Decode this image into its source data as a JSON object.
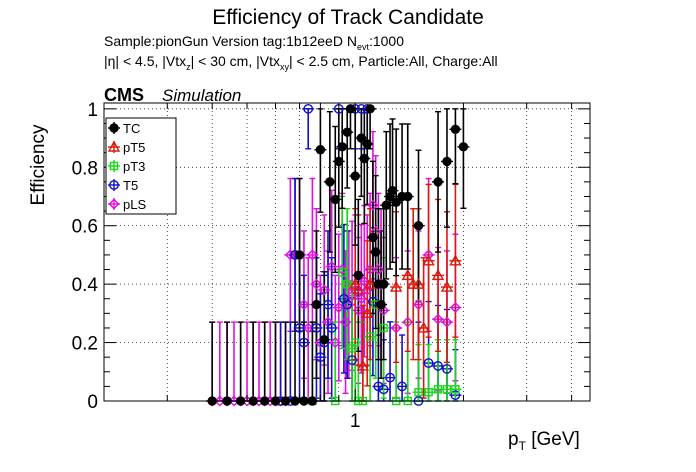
{
  "header": {
    "title": "Efficiency of Track Candidate",
    "sample_line": {
      "prefix": "Sample:pionGun   Version tag:1b12eeD  N",
      "sub": "evt",
      "suffix": ":1000"
    },
    "cuts_line": {
      "eta": "|η| < 4.5, |Vtx",
      "z_sub": "z",
      "mid": "| < 30 cm, |Vtx",
      "xy_sub": "xy",
      "end": "| < 2.5 cm, Particle:All, Charge:All"
    },
    "cms": "CMS",
    "simulation": "Simulation"
  },
  "axes": {
    "ylabel": "Efficiency",
    "xlabel_main": "p",
    "xlabel_sub": "T",
    "xlabel_unit": " [GeV]"
  },
  "colors": {
    "TC": "#000000",
    "pT5": "#d91a0a",
    "pT3": "#16d916",
    "T5": "#1010c8",
    "pLS": "#e010e0"
  },
  "chart_data": {
    "type": "scatter",
    "x_scale": "log",
    "xlim": [
      0.2,
      4.5
    ],
    "ylim": [
      0,
      1.02
    ],
    "y_ticks": [
      "0",
      "0.2",
      "0.4",
      "0.6",
      "0.8",
      "1"
    ],
    "x_ticks": [
      "1"
    ],
    "grid": true,
    "legend_position": "top-left",
    "x": [
      0.4,
      0.42,
      0.44,
      0.46,
      0.48,
      0.5,
      0.52,
      0.54,
      0.56,
      0.58,
      0.6,
      0.62,
      0.64,
      0.66,
      0.68,
      0.7,
      0.72,
      0.74,
      0.76,
      0.78,
      0.8,
      0.82,
      0.84,
      0.86,
      0.88,
      0.9,
      0.92,
      0.94,
      0.96,
      0.98,
      1.0,
      1.02,
      1.04,
      1.06,
      1.08,
      1.1,
      1.12,
      1.14,
      1.16,
      1.18,
      1.2,
      1.25,
      1.3,
      1.4,
      1.5,
      1.6,
      1.7,
      1.8,
      1.9,
      2.0
    ],
    "series": [
      {
        "name": "TC",
        "points": [
          [
            0.4,
            0
          ],
          [
            0.44,
            0
          ],
          [
            0.48,
            0
          ],
          [
            0.52,
            0
          ],
          [
            0.56,
            0
          ],
          [
            0.6,
            0
          ],
          [
            0.64,
            0
          ],
          [
            0.68,
            0
          ],
          [
            0.7,
            0.5
          ],
          [
            0.72,
            0
          ],
          [
            0.76,
            0
          ],
          [
            0.78,
            0.33
          ],
          [
            0.8,
            0.86
          ],
          [
            0.82,
            0.21
          ],
          [
            0.85,
            0.75
          ],
          [
            0.88,
            0.69
          ],
          [
            0.9,
            0.82
          ],
          [
            0.92,
            0.87
          ],
          [
            0.95,
            0.92
          ],
          [
            0.97,
            1.0
          ],
          [
            1.0,
            0.77
          ],
          [
            1.02,
            0.43
          ],
          [
            1.04,
            0.9
          ],
          [
            1.06,
            0.83
          ],
          [
            1.08,
            0.88
          ],
          [
            1.1,
            1.0
          ],
          [
            1.12,
            0.56
          ],
          [
            1.14,
            0.51
          ],
          [
            1.16,
            0.4
          ],
          [
            1.18,
            0.33
          ],
          [
            1.2,
            0.4
          ],
          [
            1.22,
            0.67
          ],
          [
            1.25,
            0.7
          ],
          [
            1.27,
            0.72
          ],
          [
            1.3,
            0.68
          ],
          [
            1.35,
            0.7
          ],
          [
            1.4,
            0.7
          ],
          [
            1.5,
            0.6
          ],
          [
            1.7,
            0.75
          ],
          [
            1.8,
            0.82
          ],
          [
            1.9,
            0.93
          ],
          [
            2.0,
            0.87
          ]
        ]
      },
      {
        "name": "pT5",
        "points": [
          [
            1.0,
            0.4
          ],
          [
            1.02,
            0.38
          ],
          [
            1.05,
            0.12
          ],
          [
            1.08,
            0.3
          ],
          [
            1.1,
            0.4
          ],
          [
            1.3,
            0.39
          ],
          [
            1.4,
            0.43
          ],
          [
            1.45,
            0.4
          ],
          [
            1.5,
            0.4
          ],
          [
            1.55,
            0.25
          ],
          [
            1.6,
            0.48
          ],
          [
            1.7,
            0.43
          ],
          [
            1.8,
            0.39
          ],
          [
            1.9,
            0.48
          ]
        ]
      },
      {
        "name": "pT3",
        "points": [
          [
            0.76,
            0
          ],
          [
            0.88,
            0
          ],
          [
            0.92,
            0.44
          ],
          [
            0.95,
            0.4
          ],
          [
            0.98,
            0.18
          ],
          [
            1.0,
            0.2
          ],
          [
            1.02,
            0.0
          ],
          [
            1.05,
            0.0
          ],
          [
            1.1,
            0.22
          ],
          [
            1.14,
            0.33
          ],
          [
            1.2,
            0.25
          ],
          [
            1.3,
            0
          ],
          [
            1.4,
            0
          ],
          [
            1.5,
            0.03
          ],
          [
            1.6,
            0.03
          ],
          [
            1.7,
            0.04
          ],
          [
            1.8,
            0.04
          ],
          [
            1.9,
            0.04
          ]
        ]
      },
      {
        "name": "T5",
        "points": [
          [
            0.62,
            0
          ],
          [
            0.66,
            0
          ],
          [
            0.68,
            0.5
          ],
          [
            0.7,
            0.25
          ],
          [
            0.72,
            0.2
          ],
          [
            0.74,
            1.0
          ],
          [
            0.78,
            0.25
          ],
          [
            0.8,
            0.15
          ],
          [
            0.82,
            0.2
          ],
          [
            0.84,
            0.33
          ],
          [
            0.86,
            0.25
          ],
          [
            0.9,
            1.0
          ],
          [
            0.93,
            0.35
          ],
          [
            0.95,
            0.33
          ],
          [
            0.98,
            0.14
          ],
          [
            1.0,
            1.0
          ],
          [
            1.04,
            1.0
          ],
          [
            1.08,
            1.0
          ],
          [
            1.12,
            0.34
          ],
          [
            1.16,
            0.05
          ],
          [
            1.2,
            0.04
          ],
          [
            1.25,
            0.08
          ],
          [
            1.35,
            0.05
          ],
          [
            1.5,
            0
          ],
          [
            1.6,
            0.13
          ],
          [
            1.7,
            0.12
          ],
          [
            1.8,
            0.11
          ],
          [
            1.9,
            0.02
          ]
        ]
      },
      {
        "name": "pLS",
        "points": [
          [
            0.4,
            0
          ],
          [
            0.42,
            0
          ],
          [
            0.44,
            0
          ],
          [
            0.46,
            0
          ],
          [
            0.48,
            0
          ],
          [
            0.5,
            0
          ],
          [
            0.52,
            0
          ],
          [
            0.54,
            0
          ],
          [
            0.56,
            0
          ],
          [
            0.58,
            0
          ],
          [
            0.6,
            0
          ],
          [
            0.62,
            0
          ],
          [
            0.64,
            0
          ],
          [
            0.66,
            0.5
          ],
          [
            0.68,
            0.5
          ],
          [
            0.7,
            0.5
          ],
          [
            0.72,
            0.33
          ],
          [
            0.74,
            0.25
          ],
          [
            0.76,
            0.5
          ],
          [
            0.78,
            0.4
          ],
          [
            0.8,
            0.2
          ],
          [
            0.82,
            0.38
          ],
          [
            0.84,
            0.27
          ],
          [
            0.86,
            0.46
          ],
          [
            0.88,
            0.2
          ],
          [
            0.9,
            0.32
          ],
          [
            0.92,
            0.45
          ],
          [
            0.94,
            0.27
          ],
          [
            0.96,
            0.33
          ],
          [
            0.98,
            0.36
          ],
          [
            1.0,
            0.38
          ],
          [
            1.02,
            0.31
          ],
          [
            1.04,
            0.35
          ],
          [
            1.06,
            0.41
          ],
          [
            1.08,
            0.38
          ],
          [
            1.1,
            0.45
          ],
          [
            1.12,
            0.67
          ],
          [
            1.14,
            0.58
          ],
          [
            1.16,
            0.45
          ],
          [
            1.18,
            0.4
          ],
          [
            1.2,
            0.31
          ],
          [
            1.3,
            0.25
          ],
          [
            1.4,
            0.27
          ],
          [
            1.5,
            0.33
          ],
          [
            1.6,
            0.5
          ],
          [
            1.7,
            0.28
          ],
          [
            1.8,
            0.27
          ],
          [
            1.9,
            0.32
          ]
        ]
      }
    ]
  }
}
